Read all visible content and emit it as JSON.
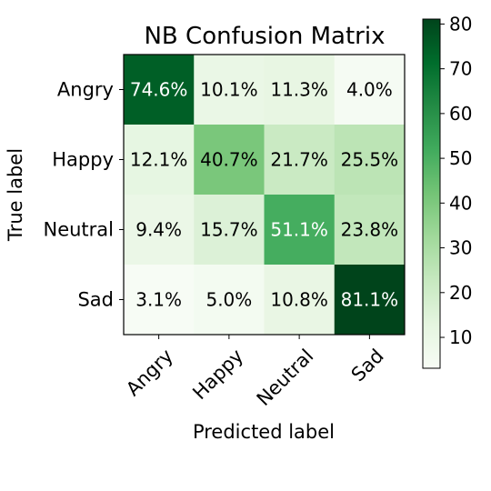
{
  "chart_data": {
    "type": "heatmap",
    "title": "NB Confusion Matrix",
    "xlabel": "Predicted label",
    "ylabel": "True label",
    "x_categories": [
      "Angry",
      "Happy",
      "Neutral",
      "Sad"
    ],
    "y_categories": [
      "Angry",
      "Happy",
      "Neutral",
      "Sad"
    ],
    "values": [
      [
        74.6,
        10.1,
        11.3,
        4.0
      ],
      [
        12.1,
        40.7,
        21.7,
        25.5
      ],
      [
        9.4,
        15.7,
        51.1,
        23.8
      ],
      [
        3.1,
        5.0,
        10.8,
        81.1
      ]
    ],
    "value_suffix": "%",
    "colormap": "Greens",
    "colorbar": {
      "ticks": [
        10,
        20,
        30,
        40,
        50,
        60,
        70,
        80
      ],
      "range": [
        3.1,
        81.1
      ]
    },
    "grid": false
  }
}
